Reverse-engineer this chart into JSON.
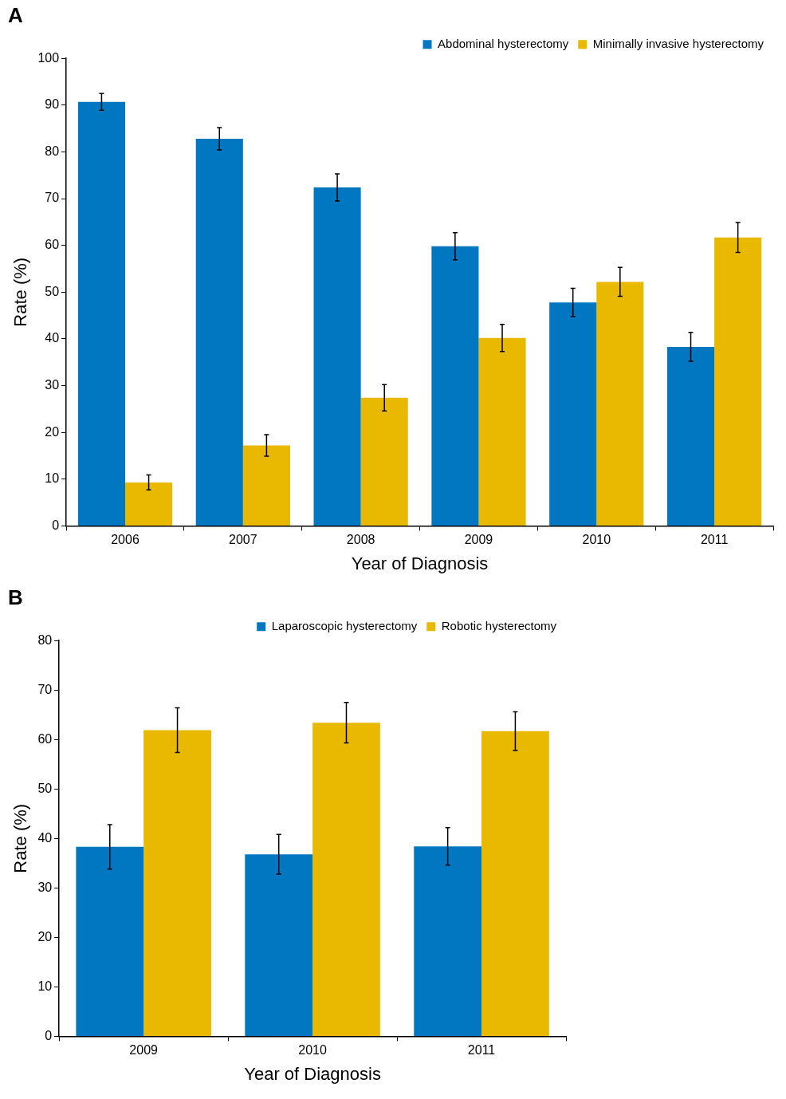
{
  "chart_data": [
    {
      "type": "bar",
      "title": "A",
      "xlabel": "Year of Diagnosis",
      "ylabel": "Rate (%)",
      "categories": [
        "2006",
        "2007",
        "2008",
        "2009",
        "2010",
        "2011"
      ],
      "ylim": [
        0,
        100
      ],
      "yticks": [
        0,
        10,
        20,
        30,
        40,
        50,
        60,
        70,
        80,
        90,
        100
      ],
      "grid": false,
      "legend": "top right",
      "series": [
        {
          "name": "Abdominal hysterectomy",
          "color": "#0077c0",
          "values": [
            90.7,
            82.8,
            72.4,
            59.8,
            47.8,
            38.3
          ],
          "errors": [
            1.8,
            2.4,
            2.9,
            2.9,
            3.0,
            3.1
          ]
        },
        {
          "name": "Minimally invasive hysterectomy",
          "color": "#e8b900",
          "values": [
            9.3,
            17.2,
            27.4,
            40.2,
            52.2,
            61.7
          ],
          "errors": [
            1.6,
            2.3,
            2.8,
            2.9,
            3.1,
            3.2
          ]
        }
      ]
    },
    {
      "type": "bar",
      "title": "B",
      "xlabel": "Year of Diagnosis",
      "ylabel": "Rate (%)",
      "categories": [
        "2009",
        "2010",
        "2011"
      ],
      "ylim": [
        0,
        80
      ],
      "yticks": [
        0,
        10,
        20,
        30,
        40,
        50,
        60,
        70,
        80
      ],
      "grid": false,
      "legend": "top right",
      "series": [
        {
          "name": "Laparoscopic hysterectomy",
          "color": "#0077c0",
          "values": [
            38.3,
            36.8,
            38.4
          ],
          "errors": [
            4.5,
            4.0,
            3.8
          ]
        },
        {
          "name": "Robotic hysterectomy",
          "color": "#e8b900",
          "values": [
            61.9,
            63.4,
            61.7
          ],
          "errors": [
            4.5,
            4.1,
            3.9
          ]
        }
      ]
    }
  ]
}
